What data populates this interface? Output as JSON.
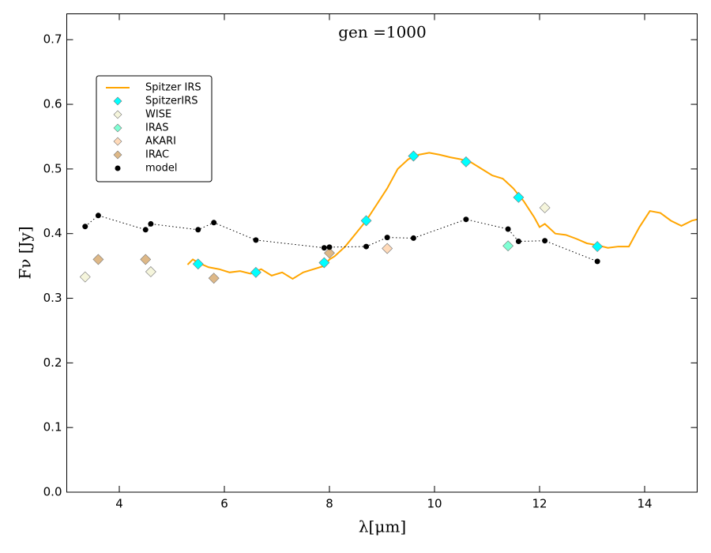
{
  "chart_data": {
    "type": "line",
    "annotation": "gen =1000",
    "xlabel": "λ[μm]",
    "ylabel": "Fν [Jy]",
    "xlim": [
      3,
      15
    ],
    "xticks": [
      4,
      6,
      8,
      10,
      12,
      14
    ],
    "ylim": [
      0,
      0.74
    ],
    "yticks": [
      {
        "value": 0,
        "label": "0.0"
      },
      0.1,
      0.2,
      0.3,
      0.4,
      0.5,
      0.6,
      0.7
    ],
    "legend": "upper left",
    "series": [
      {
        "name": "Spitzer IRS",
        "color": "#ffa500",
        "style": "line",
        "x": [
          5.3,
          5.4,
          5.5,
          5.7,
          5.9,
          6.1,
          6.3,
          6.5,
          6.7,
          6.9,
          7.1,
          7.3,
          7.5,
          7.7,
          7.9,
          8.0,
          8.1,
          8.3,
          8.5,
          8.7,
          8.9,
          9.1,
          9.3,
          9.5,
          9.7,
          9.9,
          10.1,
          10.3,
          10.5,
          10.7,
          10.9,
          11.1,
          11.3,
          11.5,
          11.7,
          11.9,
          12.0,
          12.1,
          12.3,
          12.5,
          12.7,
          12.9,
          13.1,
          13.3,
          13.5,
          13.7,
          13.9,
          14.1,
          14.3,
          14.5,
          14.7,
          14.9,
          15.0
        ],
        "values": [
          0.352,
          0.36,
          0.355,
          0.348,
          0.345,
          0.34,
          0.342,
          0.338,
          0.345,
          0.335,
          0.34,
          0.33,
          0.34,
          0.345,
          0.35,
          0.36,
          0.365,
          0.38,
          0.4,
          0.42,
          0.445,
          0.47,
          0.5,
          0.515,
          0.522,
          0.525,
          0.522,
          0.518,
          0.515,
          0.51,
          0.5,
          0.49,
          0.485,
          0.47,
          0.45,
          0.425,
          0.41,
          0.415,
          0.4,
          0.398,
          0.392,
          0.385,
          0.382,
          0.378,
          0.38,
          0.38,
          0.41,
          0.435,
          0.432,
          0.42,
          0.412,
          0.42,
          0.422
        ]
      },
      {
        "name": "SpitzerIRS",
        "color": "#00ffff",
        "style": "diamond",
        "x": [
          5.5,
          6.6,
          7.9,
          8.7,
          9.6,
          10.6,
          11.6,
          13.1
        ],
        "values": [
          0.353,
          0.34,
          0.355,
          0.42,
          0.52,
          0.511,
          0.456,
          0.38
        ]
      },
      {
        "name": "WISE",
        "color": "#f5f5dc",
        "style": "diamond",
        "x": [
          3.35,
          4.6,
          12.1
        ],
        "values": [
          0.333,
          0.341,
          0.44
        ]
      },
      {
        "name": "IRAS",
        "color": "#7fffd4",
        "style": "diamond",
        "x": [
          11.4
        ],
        "values": [
          0.381
        ]
      },
      {
        "name": "AKARI",
        "color": "#ffdab9",
        "style": "diamond",
        "x": [
          9.1
        ],
        "values": [
          0.377
        ]
      },
      {
        "name": "IRAC",
        "color": "#deb887",
        "style": "diamond",
        "x": [
          3.6,
          4.5,
          5.8,
          8.0
        ],
        "values": [
          0.36,
          0.36,
          0.331,
          0.37
        ]
      },
      {
        "name": "model",
        "color": "#000000",
        "style": "dotted",
        "x": [
          3.35,
          3.6,
          4.5,
          4.6,
          5.5,
          5.8,
          6.6,
          7.9,
          8.0,
          8.7,
          9.1,
          9.6,
          10.6,
          11.4,
          11.6,
          12.1,
          13.1
        ],
        "values": [
          0.411,
          0.428,
          0.406,
          0.415,
          0.406,
          0.417,
          0.39,
          0.378,
          0.379,
          0.38,
          0.394,
          0.393,
          0.422,
          0.407,
          0.388,
          0.389,
          0.357
        ]
      }
    ]
  }
}
